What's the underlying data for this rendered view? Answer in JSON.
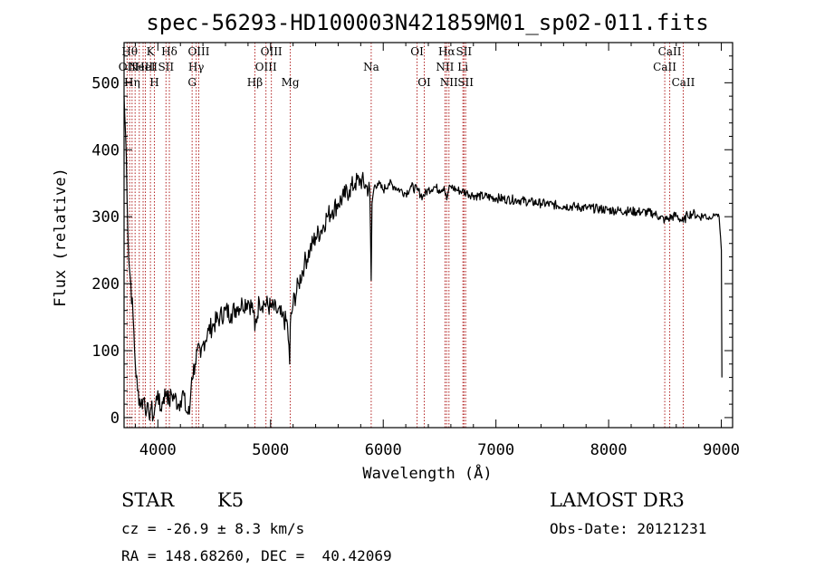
{
  "chart_data": {
    "type": "line",
    "title": "spec-56293-HD100003N421859M01_sp02-011.fits",
    "xlabel": "Wavelength (Å)",
    "ylabel": "Flux (relative)",
    "xlim": [
      3700,
      9100
    ],
    "ylim": [
      -15,
      560
    ],
    "xticks": [
      4000,
      5000,
      6000,
      7000,
      8000,
      9000
    ],
    "yticks": [
      0,
      100,
      200,
      300,
      400,
      500
    ],
    "series": [
      {
        "name": "flux",
        "x": [
          3700,
          3720,
          3740,
          3760,
          3780,
          3800,
          3820,
          3850,
          3880,
          3900,
          3920,
          3940,
          3960,
          3980,
          4000,
          4020,
          4050,
          4080,
          4100,
          4120,
          4150,
          4180,
          4200,
          4220,
          4250,
          4280,
          4300,
          4330,
          4350,
          4380,
          4400,
          4450,
          4500,
          4550,
          4600,
          4650,
          4700,
          4750,
          4800,
          4850,
          4860,
          4900,
          4950,
          5000,
          5050,
          5100,
          5150,
          5170,
          5175,
          5200,
          5250,
          5300,
          5350,
          5400,
          5450,
          5500,
          5550,
          5600,
          5650,
          5700,
          5750,
          5800,
          5850,
          5880,
          5893,
          5900,
          5920,
          5950,
          6000,
          6050,
          6100,
          6150,
          6200,
          6250,
          6300,
          6350,
          6400,
          6450,
          6500,
          6540,
          6563,
          6580,
          6600,
          6650,
          6700,
          6750,
          6800,
          6900,
          7000,
          7100,
          7200,
          7300,
          7400,
          7500,
          7600,
          7700,
          7800,
          7900,
          8000,
          8100,
          8200,
          8300,
          8400,
          8450,
          8498,
          8542,
          8600,
          8662,
          8700,
          8750,
          8800,
          8850,
          8900,
          8950,
          8980,
          9000,
          9005
        ],
        "values": [
          480,
          390,
          240,
          200,
          150,
          80,
          40,
          20,
          30,
          10,
          5,
          15,
          0,
          20,
          40,
          10,
          30,
          40,
          20,
          35,
          30,
          20,
          25,
          40,
          10,
          5,
          60,
          80,
          100,
          90,
          110,
          130,
          140,
          150,
          160,
          155,
          165,
          170,
          175,
          160,
          130,
          175,
          170,
          165,
          160,
          150,
          140,
          80,
          140,
          170,
          200,
          230,
          250,
          270,
          280,
          300,
          310,
          320,
          330,
          340,
          350,
          355,
          345,
          340,
          205,
          320,
          345,
          350,
          340,
          350,
          345,
          340,
          335,
          345,
          340,
          330,
          340,
          345,
          340,
          345,
          325,
          340,
          345,
          340,
          338,
          335,
          332,
          330,
          328,
          326,
          325,
          322,
          320,
          318,
          316,
          315,
          313,
          312,
          310,
          309,
          308,
          307,
          305,
          300,
          295,
          298,
          302,
          292,
          303,
          305,
          300,
          302,
          298,
          304,
          300,
          250,
          60
        ]
      }
    ],
    "spectral_lines": [
      {
        "x": 3727,
        "label": "OII",
        "row": 1
      },
      {
        "x": 3750,
        "label": "Hθ",
        "row": 0
      },
      {
        "x": 3771,
        "label": "Hη",
        "row": 2
      },
      {
        "x": 3798,
        "label": "",
        "row": 2
      },
      {
        "x": 3835,
        "label": "",
        "row": 0
      },
      {
        "x": 3869,
        "label": "NeIII",
        "row": 1
      },
      {
        "x": 3889,
        "label": "HeI",
        "row": 1
      },
      {
        "x": 3934,
        "label": "K",
        "row": 0
      },
      {
        "x": 3969,
        "label": "H",
        "row": 2
      },
      {
        "x": 4072,
        "label": "SII",
        "row": 1
      },
      {
        "x": 4102,
        "label": "Hδ",
        "row": 0
      },
      {
        "x": 4304,
        "label": "G",
        "row": 2
      },
      {
        "x": 4340,
        "label": "Hγ",
        "row": 1
      },
      {
        "x": 4363,
        "label": "OIII",
        "row": 0
      },
      {
        "x": 4861,
        "label": "Hβ",
        "row": 2
      },
      {
        "x": 4959,
        "label": "OIII",
        "row": 1
      },
      {
        "x": 5007,
        "label": "OIII",
        "row": 0
      },
      {
        "x": 5175,
        "label": "Mg",
        "row": 2
      },
      {
        "x": 5893,
        "label": "Na",
        "row": 1
      },
      {
        "x": 6300,
        "label": "OI",
        "row": 0
      },
      {
        "x": 6364,
        "label": "OI",
        "row": 2
      },
      {
        "x": 6548,
        "label": "NII",
        "row": 1
      },
      {
        "x": 6563,
        "label": "Hα",
        "row": 0
      },
      {
        "x": 6583,
        "label": "NII",
        "row": 2
      },
      {
        "x": 6707,
        "label": "Li",
        "row": 1
      },
      {
        "x": 6716,
        "label": "SII",
        "row": 0
      },
      {
        "x": 6731,
        "label": "SII",
        "row": 2
      },
      {
        "x": 8498,
        "label": "CaII",
        "row": 1
      },
      {
        "x": 8542,
        "label": "CaII",
        "row": 0
      },
      {
        "x": 8662,
        "label": "CaII",
        "row": 2
      }
    ]
  },
  "info": {
    "class": "STAR",
    "subclass": "K5",
    "velocity": "cz = -26.9 ± 8.3 km/s",
    "coords": "RA = 148.68260, DEC =  40.42069",
    "survey": "LAMOST DR3",
    "obs_date": "Obs-Date: 20121231"
  },
  "colors": {
    "line": "#000000",
    "marker": "#b22222"
  }
}
